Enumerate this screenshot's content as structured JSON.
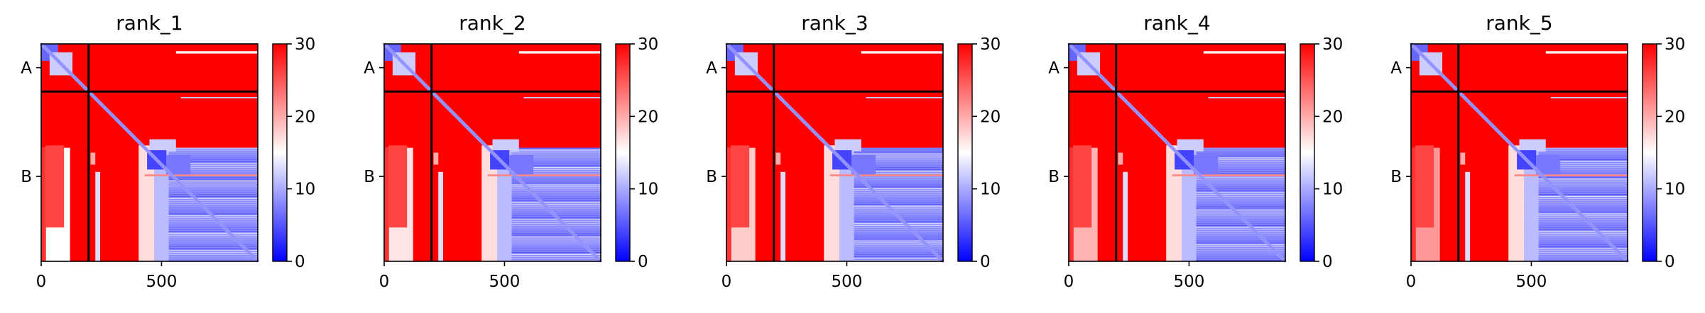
{
  "figure": {
    "background": "#ffffff"
  },
  "colormap": {
    "name": "bwr",
    "low_color": "#0000ff",
    "mid_color": "#ffffff",
    "high_color": "#ff0000"
  },
  "chart_data": [
    {
      "type": "heatmap",
      "title": "rank_1",
      "x_ticks": [
        0,
        500
      ],
      "y_chain_labels": [
        "A",
        "B"
      ],
      "chain_boundary": 197,
      "n_residues": 900,
      "colorbar": {
        "range": [
          0,
          30
        ],
        "ticks": [
          0,
          10,
          20,
          30
        ]
      }
    },
    {
      "type": "heatmap",
      "title": "rank_2",
      "x_ticks": [
        0,
        500
      ],
      "y_chain_labels": [
        "A",
        "B"
      ],
      "chain_boundary": 197,
      "n_residues": 900,
      "colorbar": {
        "range": [
          0,
          30
        ],
        "ticks": [
          0,
          10,
          20,
          30
        ]
      }
    },
    {
      "type": "heatmap",
      "title": "rank_3",
      "x_ticks": [
        0,
        500
      ],
      "y_chain_labels": [
        "A",
        "B"
      ],
      "chain_boundary": 197,
      "n_residues": 900,
      "colorbar": {
        "range": [
          0,
          30
        ],
        "ticks": [
          0,
          10,
          20,
          30
        ]
      }
    },
    {
      "type": "heatmap",
      "title": "rank_4",
      "x_ticks": [
        0,
        500
      ],
      "y_chain_labels": [
        "A",
        "B"
      ],
      "chain_boundary": 197,
      "n_residues": 900,
      "colorbar": {
        "range": [
          0,
          30
        ],
        "ticks": [
          0,
          10,
          20,
          30
        ]
      }
    },
    {
      "type": "heatmap",
      "title": "rank_5",
      "x_ticks": [
        0,
        500
      ],
      "y_chain_labels": [
        "A",
        "B"
      ],
      "chain_boundary": 197,
      "n_residues": 900,
      "colorbar": {
        "range": [
          0,
          30
        ],
        "ticks": [
          0,
          10,
          20,
          30
        ]
      }
    }
  ]
}
